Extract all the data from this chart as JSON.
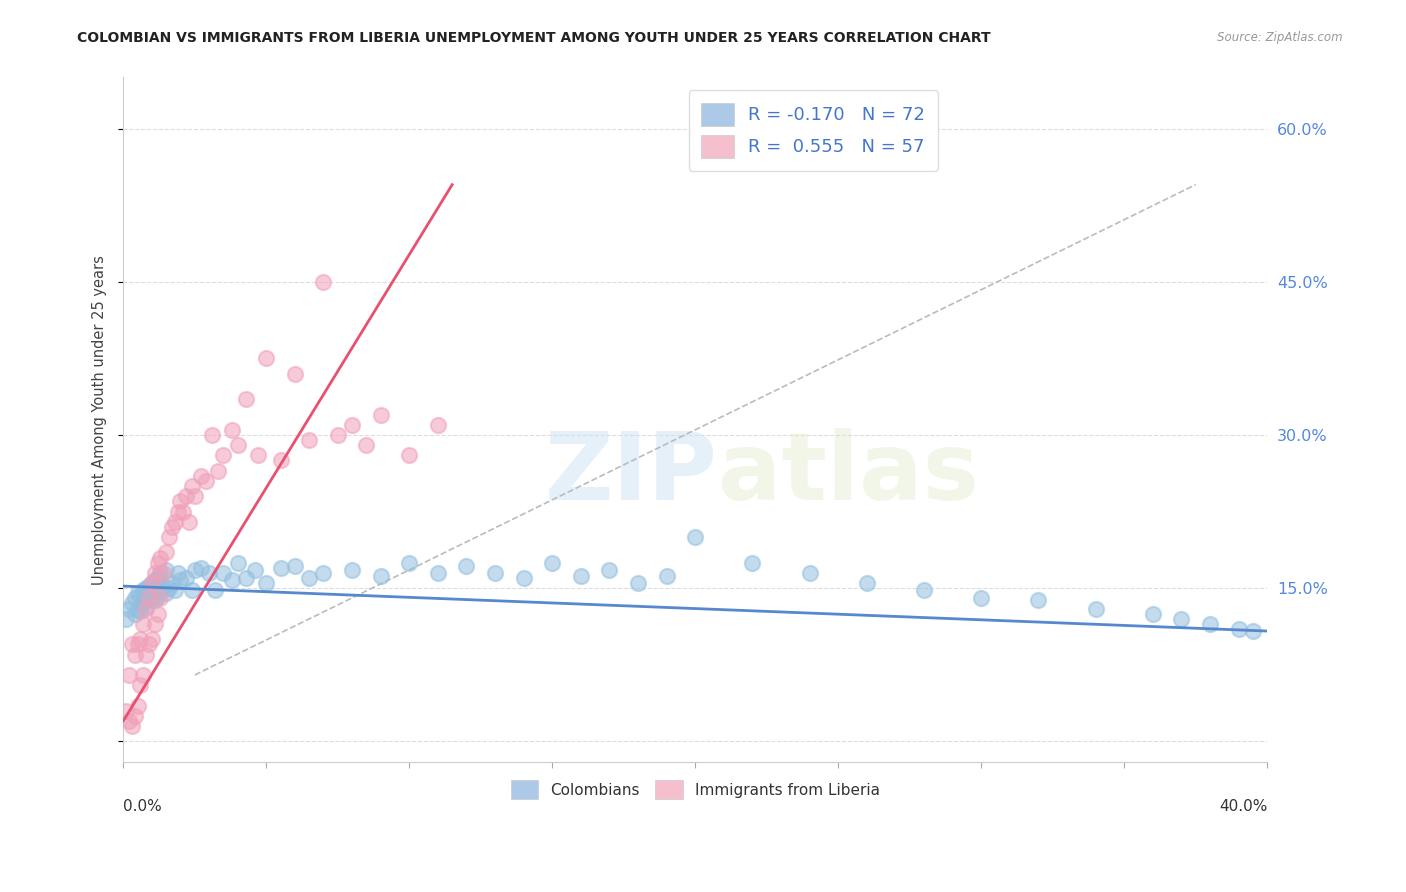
{
  "title": "COLOMBIAN VS IMMIGRANTS FROM LIBERIA UNEMPLOYMENT AMONG YOUTH UNDER 25 YEARS CORRELATION CHART",
  "source": "Source: ZipAtlas.com",
  "ylabel": "Unemployment Among Youth under 25 years",
  "watermark_zip": "ZIP",
  "watermark_atlas": "atlas",
  "legend1_label": "R = -0.170   N = 72",
  "legend2_label": "R =  0.555   N = 57",
  "legend1_color": "#adc9e8",
  "legend2_color": "#f5bfce",
  "scatter_blue_color": "#92bfdf",
  "scatter_pink_color": "#f0a0b8",
  "line_blue_color": "#5588cc",
  "line_pink_color": "#e85070",
  "grid_color": "#dddddd",
  "yticks": [
    0.0,
    0.15,
    0.3,
    0.45,
    0.6
  ],
  "ytick_labels": [
    "",
    "15.0%",
    "30.0%",
    "45.0%",
    "60.0%"
  ],
  "xlim": [
    0.0,
    0.4
  ],
  "ylim": [
    -0.02,
    0.65
  ],
  "blue_scatter_x": [
    0.001,
    0.002,
    0.003,
    0.004,
    0.004,
    0.005,
    0.005,
    0.006,
    0.006,
    0.007,
    0.007,
    0.008,
    0.008,
    0.009,
    0.009,
    0.01,
    0.01,
    0.011,
    0.011,
    0.012,
    0.012,
    0.013,
    0.013,
    0.014,
    0.015,
    0.015,
    0.016,
    0.017,
    0.018,
    0.019,
    0.02,
    0.022,
    0.024,
    0.025,
    0.027,
    0.03,
    0.032,
    0.035,
    0.038,
    0.04,
    0.043,
    0.046,
    0.05,
    0.055,
    0.06,
    0.065,
    0.07,
    0.08,
    0.09,
    0.1,
    0.11,
    0.12,
    0.13,
    0.14,
    0.15,
    0.16,
    0.17,
    0.18,
    0.19,
    0.2,
    0.22,
    0.24,
    0.26,
    0.28,
    0.3,
    0.32,
    0.34,
    0.36,
    0.37,
    0.38,
    0.39,
    0.395
  ],
  "blue_scatter_y": [
    0.12,
    0.13,
    0.135,
    0.125,
    0.14,
    0.13,
    0.145,
    0.128,
    0.142,
    0.135,
    0.148,
    0.132,
    0.15,
    0.138,
    0.152,
    0.14,
    0.155,
    0.138,
    0.158,
    0.142,
    0.16,
    0.148,
    0.165,
    0.152,
    0.145,
    0.168,
    0.15,
    0.155,
    0.148,
    0.165,
    0.158,
    0.16,
    0.148,
    0.168,
    0.17,
    0.165,
    0.148,
    0.165,
    0.158,
    0.175,
    0.16,
    0.168,
    0.155,
    0.17,
    0.172,
    0.16,
    0.165,
    0.168,
    0.162,
    0.175,
    0.165,
    0.172,
    0.165,
    0.16,
    0.175,
    0.162,
    0.168,
    0.155,
    0.162,
    0.2,
    0.175,
    0.165,
    0.155,
    0.148,
    0.14,
    0.138,
    0.13,
    0.125,
    0.12,
    0.115,
    0.11,
    0.108
  ],
  "pink_scatter_x": [
    0.001,
    0.002,
    0.002,
    0.003,
    0.003,
    0.004,
    0.004,
    0.005,
    0.005,
    0.006,
    0.006,
    0.007,
    0.007,
    0.008,
    0.008,
    0.009,
    0.009,
    0.01,
    0.01,
    0.011,
    0.011,
    0.012,
    0.012,
    0.013,
    0.013,
    0.014,
    0.015,
    0.016,
    0.017,
    0.018,
    0.019,
    0.02,
    0.021,
    0.022,
    0.023,
    0.024,
    0.025,
    0.027,
    0.029,
    0.031,
    0.033,
    0.035,
    0.038,
    0.04,
    0.043,
    0.047,
    0.05,
    0.055,
    0.06,
    0.065,
    0.07,
    0.075,
    0.08,
    0.085,
    0.09,
    0.1,
    0.11
  ],
  "pink_scatter_y": [
    0.03,
    0.02,
    0.065,
    0.015,
    0.095,
    0.025,
    0.085,
    0.035,
    0.095,
    0.055,
    0.1,
    0.065,
    0.115,
    0.085,
    0.13,
    0.095,
    0.14,
    0.1,
    0.155,
    0.115,
    0.165,
    0.125,
    0.175,
    0.14,
    0.18,
    0.165,
    0.185,
    0.2,
    0.21,
    0.215,
    0.225,
    0.235,
    0.225,
    0.24,
    0.215,
    0.25,
    0.24,
    0.26,
    0.255,
    0.3,
    0.265,
    0.28,
    0.305,
    0.29,
    0.335,
    0.28,
    0.375,
    0.275,
    0.36,
    0.295,
    0.45,
    0.3,
    0.31,
    0.29,
    0.32,
    0.28,
    0.31
  ],
  "pink_line_x0": 0.0,
  "pink_line_y0": 0.02,
  "pink_line_x1": 0.115,
  "pink_line_y1": 0.545,
  "blue_line_x0": 0.0,
  "blue_line_y0": 0.152,
  "blue_line_x1": 0.4,
  "blue_line_y1": 0.108,
  "ref_line_x0": 0.025,
  "ref_line_y0": 0.065,
  "ref_line_x1": 0.375,
  "ref_line_y1": 0.545
}
